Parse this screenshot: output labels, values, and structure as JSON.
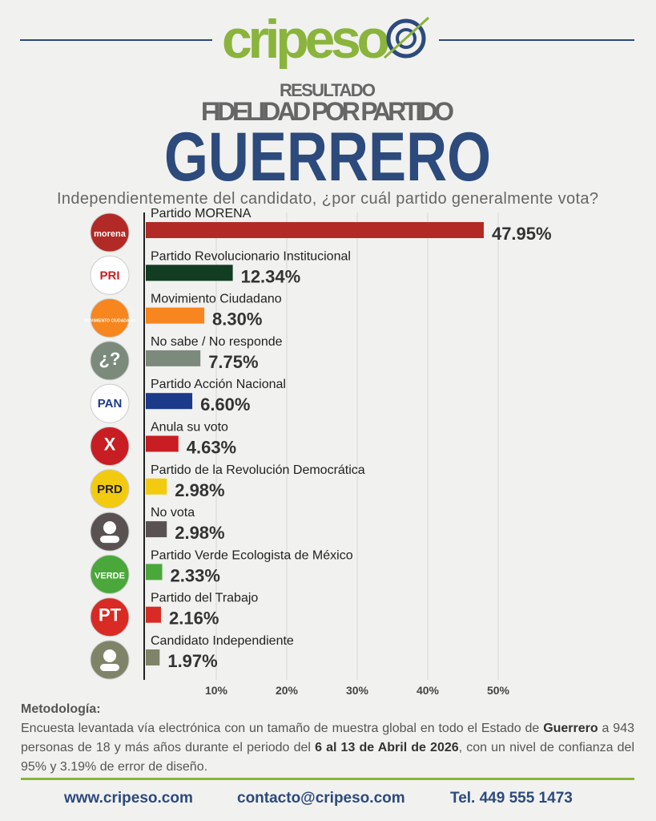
{
  "header": {
    "logo": "cripeso",
    "kicker": "RESULTADO",
    "title": "FIDELIDAD POR PARTIDO",
    "state": "GUERRERO",
    "question": "Independientemente del candidato, ¿por cuál partido generalmente vota?"
  },
  "chart_data": {
    "type": "bar",
    "orientation": "horizontal",
    "categories": [
      "Partido MORENA",
      "Partido Revolucionario Institucional",
      "Movimiento Ciudadano",
      "No sabe / No responde",
      "Partido Acción Nacional",
      "Anula su voto",
      "Partido de la Revolución Democrática",
      "No vota",
      "Partido Verde Ecologista de México",
      "Partido del Trabajo",
      "Candidato Independiente"
    ],
    "values": [
      47.95,
      12.34,
      8.3,
      7.75,
      6.6,
      4.63,
      2.98,
      2.98,
      2.33,
      2.16,
      1.97
    ],
    "value_labels": [
      "47.95%",
      "12.34%",
      "8.30%",
      "7.75%",
      "6.60%",
      "4.63%",
      "2.98%",
      "2.98%",
      "2.33%",
      "2.16%",
      "1.97%"
    ],
    "colors": [
      "#b22a25",
      "#123d22",
      "#f7861e",
      "#7c8a7c",
      "#1c3a8a",
      "#c81d22",
      "#f2cb10",
      "#5a5252",
      "#4aa83a",
      "#d92b23",
      "#7f8468"
    ],
    "xlim": [
      0,
      50
    ],
    "xticks": [
      {
        "value": 10,
        "label": "10%"
      },
      {
        "value": 20,
        "label": "20%"
      },
      {
        "value": 30,
        "label": "30%"
      },
      {
        "value": 40,
        "label": "40%"
      },
      {
        "value": 50,
        "label": "50%"
      }
    ],
    "grid": true
  },
  "icons": [
    {
      "text": "morena",
      "color": "#b22a25"
    },
    {
      "text": "PRI",
      "color": "#ffffff"
    },
    {
      "text": "MOVIMIENTO CIUDADANO",
      "color": "#f7861e"
    },
    {
      "text": "¿?",
      "color": "#7c8a7c"
    },
    {
      "text": "PAN",
      "color": "#ffffff"
    },
    {
      "text": "X",
      "color": "#c81d22"
    },
    {
      "text": "PRD",
      "color": "#f2cb10"
    },
    {
      "color": "#5a5252"
    },
    {
      "text": "VERDE",
      "color": "#4aa83a"
    },
    {
      "text": "PT",
      "color": "#d92b23"
    },
    {
      "color": "#7f8468"
    }
  ],
  "methodology": {
    "heading": "Metodología:",
    "runs": [
      {
        "text": "Encuesta levantada vía electrónica con un tamaño de muestra global en todo el Estado de "
      },
      {
        "text": "Guerrero",
        "bold": true
      },
      {
        "text": " a 943 personas de 18 y más años durante el periodo del "
      },
      {
        "text": "6 al 13 de Abril de 2026",
        "bold": true
      },
      {
        "text": ", con un nivel de confianza del 95% y 3.19% de error de diseño."
      }
    ]
  },
  "footer": {
    "web": "www.cripeso.com",
    "email": "contacto@cripeso.com",
    "phone": "Tel. 449 555 1473"
  }
}
